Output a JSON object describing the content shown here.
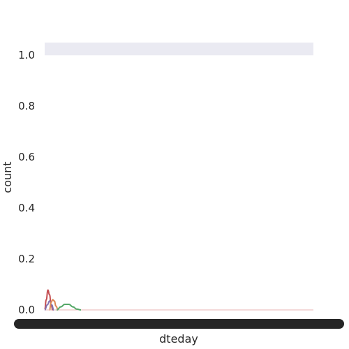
{
  "chart_data": {
    "type": "line",
    "title": "",
    "xlabel": "dteday",
    "ylabel": "count",
    "ylim": [
      0.0,
      1.05
    ],
    "y_ticks": [
      "0.0",
      "0.2",
      "0.4",
      "0.6",
      "0.8",
      "1.0"
    ],
    "x_tick_labels_note": "dense overlapping date tick labels rendered as a solid black band",
    "grid": false,
    "band": {
      "y_from": 1.0,
      "y_to": 1.05,
      "color": "#eaeaf2"
    },
    "baseline_color": "#e8b4b4",
    "series": [
      {
        "color": "#c44e52",
        "x": [
          0.0,
          0.006,
          0.012,
          0.018,
          0.024,
          0.03
        ],
        "values": [
          0.0,
          0.04,
          0.078,
          0.06,
          0.02,
          0.0
        ]
      },
      {
        "color": "#8172b2",
        "x": [
          0.0,
          0.01,
          0.018,
          0.026,
          0.034
        ],
        "values": [
          0.0,
          0.02,
          0.035,
          0.02,
          0.0
        ]
      },
      {
        "color": "#dd8452",
        "x": [
          0.018,
          0.024,
          0.03,
          0.036,
          0.042,
          0.05
        ],
        "values": [
          0.0,
          0.03,
          0.04,
          0.035,
          0.015,
          0.0
        ]
      },
      {
        "color": "#55a868",
        "x": [
          0.045,
          0.06,
          0.075,
          0.09,
          0.105,
          0.12,
          0.135
        ],
        "values": [
          0.0,
          0.012,
          0.022,
          0.022,
          0.012,
          0.003,
          0.0
        ]
      }
    ]
  }
}
